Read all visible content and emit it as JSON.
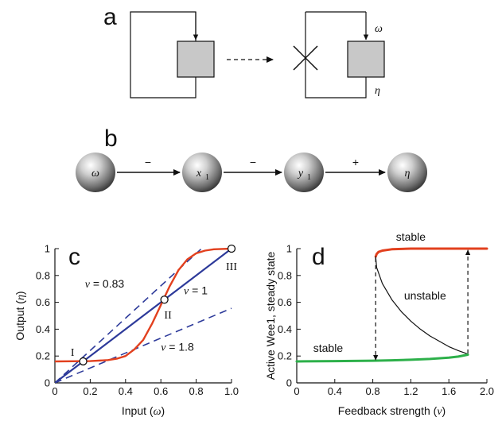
{
  "panels": {
    "a": {
      "letter": "a",
      "omega": "ω",
      "eta": "η"
    },
    "b": {
      "letter": "b",
      "nodes": [
        {
          "main": "ω",
          "sub": ""
        },
        {
          "main": "x",
          "sub": "1"
        },
        {
          "main": "y",
          "sub": "1"
        },
        {
          "main": "η",
          "sub": ""
        }
      ],
      "edge_signs": [
        "−",
        "−",
        "+"
      ]
    }
  },
  "chart_data": [
    {
      "panel": "c",
      "type": "line",
      "letter": "c",
      "xlabel_prefix": "Input (",
      "xlabel_var": "ω",
      "xlabel_suffix": ")",
      "ylabel_prefix": "Output (",
      "ylabel_var": "η",
      "ylabel_suffix": ")",
      "xlim": [
        0,
        1
      ],
      "ylim": [
        0,
        1
      ],
      "xticks": [
        "0",
        "0.2",
        "0.4",
        "0.6",
        "0.8",
        "1.0"
      ],
      "yticks": [
        "0",
        "0.2",
        "0.4",
        "0.6",
        "0.8",
        "1"
      ],
      "series": [
        {
          "kind": "response",
          "color": "#e2401e",
          "x": [
            0,
            0.2,
            0.3,
            0.35,
            0.4,
            0.45,
            0.5,
            0.55,
            0.6,
            0.65,
            0.7,
            0.75,
            0.8,
            0.85,
            0.9,
            1.0
          ],
          "y": [
            0.16,
            0.162,
            0.17,
            0.18,
            0.2,
            0.25,
            0.32,
            0.44,
            0.58,
            0.72,
            0.84,
            0.92,
            0.965,
            0.985,
            0.995,
            1.0
          ]
        }
      ],
      "feedback_lines": [
        {
          "label_prefix": "v",
          "label_value": " = 0.83",
          "slope": 1.2048,
          "color": "#2d3a9a",
          "style": "dashed",
          "label_x": 0.17,
          "label_y": 0.71
        },
        {
          "label_prefix": "v",
          "label_value": " = 1",
          "slope": 1.0,
          "color": "#2d3a9a",
          "style": "solid",
          "label_x": 0.73,
          "label_y": 0.66
        },
        {
          "label_prefix": "v",
          "label_value": " = 1.8",
          "slope": 0.5556,
          "color": "#2d3a9a",
          "style": "dashed",
          "label_x": 0.6,
          "label_y": 0.24
        }
      ],
      "fixed_points": [
        {
          "label": "I",
          "x": 0.16,
          "y": 0.16,
          "label_x": 0.1,
          "label_y": 0.2
        },
        {
          "label": "II",
          "x": 0.62,
          "y": 0.62,
          "label_x": 0.64,
          "label_y": 0.48
        },
        {
          "label": "III",
          "x": 1.0,
          "y": 1.0,
          "label_x": 1.0,
          "label_y": 0.84
        }
      ]
    },
    {
      "panel": "d",
      "type": "line",
      "letter": "d",
      "xlabel_prefix": "Feedback strength (",
      "xlabel_var": "v",
      "xlabel_suffix": ")",
      "ylabel": "Active Wee1, steady state",
      "xlim": [
        0,
        2.0
      ],
      "ylim": [
        0,
        1
      ],
      "xticks": [
        "0",
        "0.4",
        "0.8",
        "1.2",
        "1.6",
        "2.0"
      ],
      "yticks": [
        "0",
        "0.2",
        "0.4",
        "0.6",
        "0.8",
        "1"
      ],
      "series": [
        {
          "kind": "upper-stable",
          "color": "#e2401e",
          "x": [
            0.83,
            0.84,
            0.86,
            0.9,
            1.0,
            1.2,
            1.6,
            2.0
          ],
          "y": [
            0.94,
            0.96,
            0.975,
            0.985,
            0.995,
            1.0,
            1.0,
            1.0
          ]
        },
        {
          "kind": "unstable",
          "color": "#111111",
          "x": [
            0.83,
            0.84,
            0.9,
            1.0,
            1.1,
            1.2,
            1.3,
            1.4,
            1.5,
            1.6,
            1.7,
            1.8
          ],
          "y": [
            0.94,
            0.86,
            0.74,
            0.62,
            0.53,
            0.46,
            0.4,
            0.35,
            0.31,
            0.27,
            0.24,
            0.215
          ]
        },
        {
          "kind": "lower-stable",
          "color": "#2db04a",
          "x": [
            0,
            0.4,
            0.8,
            1.0,
            1.2,
            1.4,
            1.6,
            1.7,
            1.8
          ],
          "y": [
            0.16,
            0.162,
            0.165,
            0.168,
            0.172,
            0.178,
            0.188,
            0.196,
            0.21
          ]
        }
      ],
      "jumps": [
        {
          "x": 0.83,
          "from": 0.93,
          "to": 0.17,
          "direction": "down"
        },
        {
          "x": 1.8,
          "from": 0.22,
          "to": 0.99,
          "direction": "up"
        }
      ],
      "labels": [
        {
          "text": "stable",
          "x": 1.2,
          "y": 1.06
        },
        {
          "text": "unstable",
          "x": 1.35,
          "y": 0.62
        },
        {
          "text": "stable",
          "x": 0.33,
          "y": 0.23
        }
      ]
    }
  ]
}
